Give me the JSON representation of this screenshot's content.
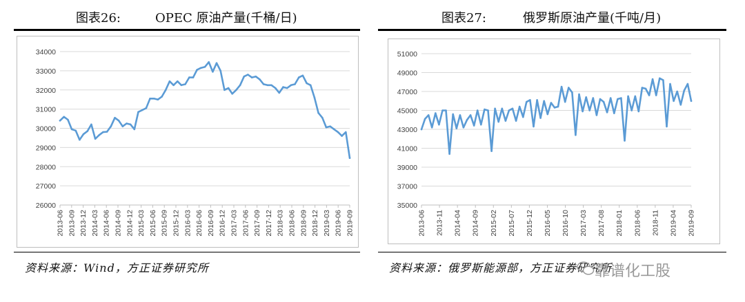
{
  "left": {
    "figure_no": "图表26:",
    "caption": "OPEC 原油产量(千桶/日)",
    "source": "资料来源：Wind，方正证券研究所"
  },
  "right": {
    "figure_no": "图表27:",
    "caption": "俄罗斯原油产量(千吨/月)",
    "source": "资料来源：俄罗斯能源部，方正证券研究所"
  },
  "watermark": "靠谱化工股",
  "colors": {
    "line": "#5b9bd5",
    "grid": "#d9d9d9",
    "axis": "#bfbfbf"
  },
  "chart_data": [
    {
      "type": "line",
      "title": "OPEC 原油产量(千桶/日)",
      "xlabel": "",
      "ylabel": "",
      "ylim": [
        26000,
        34000
      ],
      "yticks": [
        26000,
        27000,
        28000,
        29000,
        30000,
        31000,
        32000,
        33000,
        34000
      ],
      "x_tick_labels": [
        "2013-06",
        "2013-09",
        "2013-12",
        "2014-03",
        "2014-06",
        "2014-09",
        "2014-12",
        "2015-03",
        "2015-06",
        "2015-09",
        "2015-12",
        "2016-03",
        "2016-06",
        "2016-09",
        "2016-12",
        "2017-03",
        "2017-06",
        "2017-09",
        "2017-12",
        "2018-03",
        "2018-06",
        "2018-09",
        "2018-12",
        "2019-03",
        "2019-06",
        "2019-09"
      ],
      "x_start": "2013-06",
      "x_end": "2019-09",
      "grid": true,
      "legend": "none",
      "series": [
        {
          "values": [
            30400,
            30600,
            30450,
            29950,
            29880,
            29400,
            29700,
            29850,
            30200,
            29450,
            29650,
            29800,
            29820,
            30100,
            30550,
            30400,
            30100,
            30250,
            30200,
            29950,
            30850,
            30950,
            31050,
            31550,
            31550,
            31500,
            31650,
            32000,
            32450,
            32250,
            32450,
            32250,
            32300,
            32650,
            32650,
            33050,
            33150,
            33200,
            33450,
            32950,
            33400,
            33000,
            32000,
            32100,
            31800,
            32000,
            32250,
            32700,
            32800,
            32650,
            32700,
            32550,
            32300,
            32250,
            32250,
            32100,
            31850,
            32150,
            32100,
            32250,
            32300,
            32650,
            32750,
            32350,
            32250,
            31600,
            30800,
            30550,
            30050,
            30100,
            29950,
            29800,
            29600,
            29800,
            28450
          ]
        }
      ]
    },
    {
      "type": "line",
      "title": "俄罗斯原油产量(千吨/月)",
      "xlabel": "",
      "ylabel": "",
      "ylim": [
        35000,
        51000
      ],
      "yticks": [
        35000,
        37000,
        39000,
        41000,
        43000,
        45000,
        47000,
        49000,
        51000
      ],
      "x_tick_labels": [
        "2013-06",
        "2013-11",
        "2014-04",
        "2014-09",
        "2015-02",
        "2015-07",
        "2015-12",
        "2016-05",
        "2016-10",
        "2017-03",
        "2017-08",
        "2018-01",
        "2018-06",
        "2018-11",
        "2019-04",
        "2019-09"
      ],
      "x_start": "2013-06",
      "x_end": "2019-09",
      "grid": true,
      "legend": "none",
      "series": [
        {
          "values": [
            43000,
            44100,
            44500,
            43200,
            44700,
            43500,
            45000,
            45000,
            40400,
            44600,
            43100,
            44500,
            43200,
            44000,
            44500,
            43400,
            45000,
            43500,
            45100,
            45000,
            40700,
            45200,
            43800,
            45200,
            43900,
            45000,
            45200,
            43900,
            45400,
            44300,
            45900,
            46100,
            43300,
            46100,
            44200,
            46000,
            44600,
            45800,
            45300,
            45400,
            47500,
            45900,
            47400,
            46900,
            42400,
            46700,
            44900,
            46400,
            45000,
            46300,
            44500,
            46200,
            45900,
            44800,
            46300,
            44700,
            46200,
            46300,
            41800,
            46500,
            45000,
            46500,
            44900,
            47400,
            47300,
            46600,
            48300,
            46600,
            48400,
            48200,
            43300,
            47800,
            46000,
            47000,
            45600,
            47100,
            47800,
            46000
          ]
        }
      ]
    }
  ]
}
